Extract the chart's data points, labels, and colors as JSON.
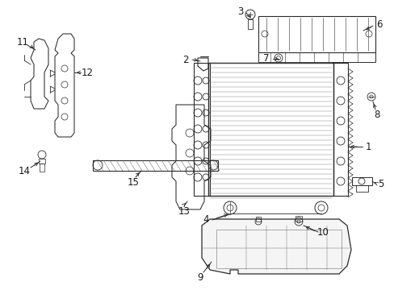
{
  "bg_color": "#ffffff",
  "line_color": "#2a2a2a",
  "figsize": [
    4.89,
    3.6
  ],
  "dpi": 100,
  "label_fontsize": 8.5
}
